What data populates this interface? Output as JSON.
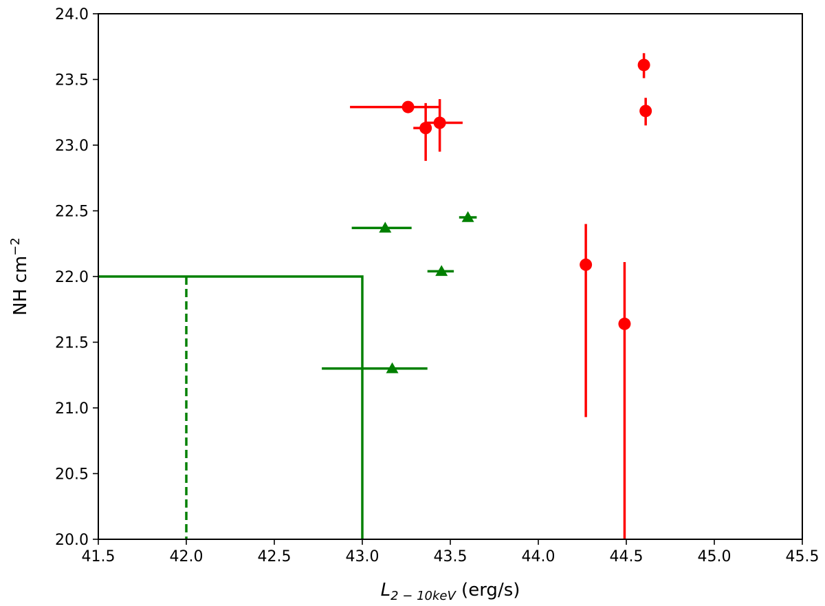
{
  "chart_data": {
    "type": "scatter",
    "xlabel_main": "L",
    "xlabel_sub": "2 − 10keV",
    "xlabel_unit": " (erg/s)",
    "ylabel_main": "NH cm",
    "ylabel_sup": "−2",
    "xlim": [
      41.5,
      45.5
    ],
    "ylim": [
      20.0,
      24.0
    ],
    "xticks": [
      "41.5",
      "42.0",
      "42.5",
      "43.0",
      "43.5",
      "44.0",
      "44.5",
      "45.0",
      "45.5"
    ],
    "yticks": [
      "20.0",
      "20.5",
      "21.0",
      "21.5",
      "22.0",
      "22.5",
      "23.0",
      "23.5",
      "24.0"
    ],
    "grid": false,
    "series": [
      {
        "marker": "circle",
        "color": "#ff0000",
        "points": [
          {
            "x": 43.26,
            "y": 23.29,
            "xerr": [
              0.33,
              0.18
            ],
            "yerr": [
              0,
              0
            ]
          },
          {
            "x": 43.36,
            "y": 23.13,
            "xerr": [
              0.07,
              0.0
            ],
            "yerr": [
              0.25,
              0.19
            ]
          },
          {
            "x": 43.44,
            "y": 23.17,
            "xerr": [
              0.08,
              0.13
            ],
            "yerr": [
              0.22,
              0.18
            ]
          },
          {
            "x": 44.6,
            "y": 23.61,
            "xerr": [
              0,
              0
            ],
            "yerr": [
              0.1,
              0.09
            ]
          },
          {
            "x": 44.61,
            "y": 23.26,
            "xerr": [
              0,
              0
            ],
            "yerr": [
              0.11,
              0.1
            ]
          },
          {
            "x": 44.27,
            "y": 22.09,
            "xerr": [
              0,
              0
            ],
            "yerr": [
              1.16,
              0.31
            ]
          },
          {
            "x": 44.49,
            "y": 21.64,
            "xerr": [
              0,
              0
            ],
            "yerr": [
              1.64,
              0.47
            ]
          }
        ]
      },
      {
        "marker": "triangle",
        "color": "#008000",
        "points": [
          {
            "x": 43.13,
            "y": 22.37,
            "xerr": [
              0.19,
              0.15
            ],
            "yerr": [
              0,
              0
            ]
          },
          {
            "x": 43.6,
            "y": 22.45,
            "xerr": [
              0.05,
              0.05
            ],
            "yerr": [
              0,
              0
            ]
          },
          {
            "x": 43.45,
            "y": 22.04,
            "xerr": [
              0.08,
              0.07
            ],
            "yerr": [
              0,
              0
            ]
          },
          {
            "x": 43.17,
            "y": 21.3,
            "xerr": [
              0.4,
              0.2
            ],
            "yerr": [
              0,
              0
            ]
          }
        ]
      }
    ],
    "lines": [
      {
        "style": "solid",
        "color": "#008000",
        "points": [
          [
            41.5,
            22.0
          ],
          [
            43.0,
            22.0
          ],
          [
            43.0,
            20.0
          ]
        ]
      },
      {
        "style": "dashed",
        "color": "#008000",
        "points": [
          [
            42.0,
            22.0
          ],
          [
            42.0,
            20.0
          ]
        ]
      }
    ]
  }
}
